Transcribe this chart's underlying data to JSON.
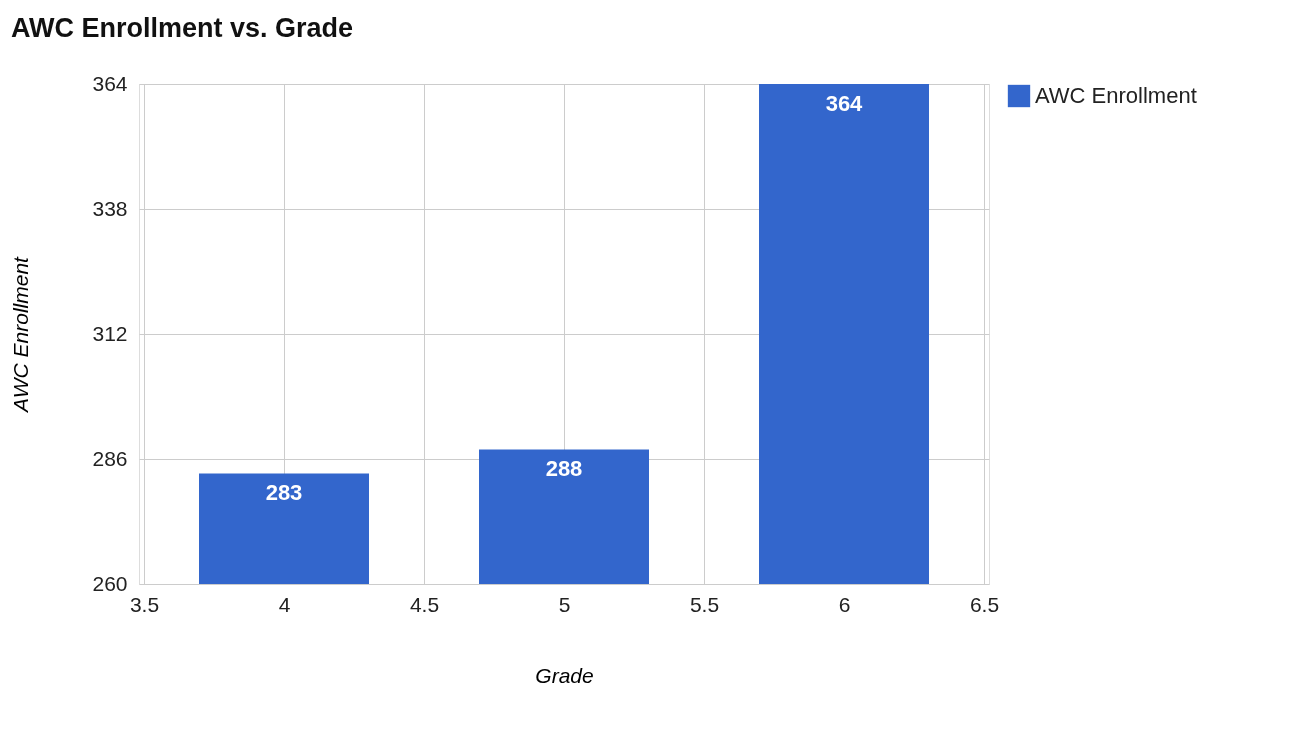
{
  "chart_data": {
    "type": "bar",
    "title": "AWC Enrollment vs. Grade",
    "xlabel": "Grade",
    "ylabel": "AWC Enrollment",
    "x": [
      4,
      5,
      6
    ],
    "series": [
      {
        "name": "AWC Enrollment",
        "color": "#3366cc",
        "values": [
          283,
          288,
          364
        ]
      }
    ],
    "xlim": [
      3.5,
      6.5
    ],
    "xticks": [
      3.5,
      4,
      4.5,
      5,
      5.5,
      6,
      6.5
    ],
    "ylim": [
      260,
      364
    ],
    "yticks": [
      260,
      286,
      312,
      338,
      364
    ],
    "grid": true,
    "legend": "top right",
    "data_labels": true
  }
}
